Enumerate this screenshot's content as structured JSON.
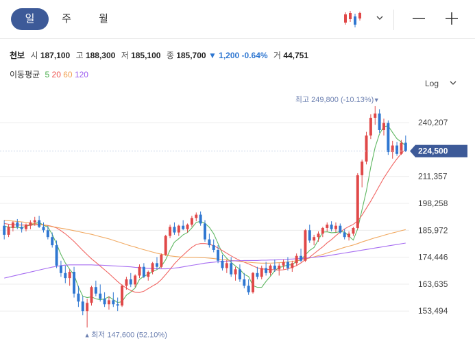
{
  "tabs": [
    {
      "label": "일",
      "active": true
    },
    {
      "label": "주",
      "active": false
    },
    {
      "label": "월",
      "active": false
    }
  ],
  "toolbar": {
    "chart_type_icon": "candlestick-icon",
    "dropdown_icon": "chevron-down-icon",
    "zoom_out_icon": "minus-icon",
    "zoom_in_icon": "plus-icon"
  },
  "quote": {
    "name": "천보",
    "open_label": "시",
    "open": "187,100",
    "high_label": "고",
    "high": "188,300",
    "low_label": "저",
    "low": "185,100",
    "close_label": "종",
    "close": "185,700",
    "change_arrow": "▼",
    "change": "1,200",
    "change_pct": "-0.64%",
    "volume_label": "거",
    "volume": "44,751"
  },
  "ma": {
    "label": "이동평균",
    "items": [
      {
        "period": "5",
        "color": "#4caf50"
      },
      {
        "period": "20",
        "color": "#ef5350"
      },
      {
        "period": "60",
        "color": "#f0a050"
      },
      {
        "period": "120",
        "color": "#9c5cf0"
      }
    ]
  },
  "scale": {
    "label": "Log",
    "icon": "chevron-down-icon"
  },
  "colors": {
    "up": "#e04848",
    "down": "#2f77d1",
    "accent": "#3d5a98"
  },
  "chart_data": {
    "type": "candlestick",
    "scale": "log",
    "yticks": [
      "240,207",
      "211,357",
      "198,258",
      "185,972",
      "174,446",
      "163,635",
      "153,494"
    ],
    "ytick_values": [
      240207,
      211357,
      198258,
      185972,
      174446,
      163635,
      153494
    ],
    "ylim": [
      146000,
      256000
    ],
    "current_price": 224500,
    "current_price_label": "224,500",
    "high_annotation": "최고 249,800 (-10.13%)",
    "high_marker": "▼",
    "high_value": 249800,
    "low_annotation": "최저 147,600 (52.10%)",
    "low_marker": "▲",
    "low_value": 147600,
    "candles": [
      [
        188000,
        190500,
        182000,
        184000
      ],
      [
        184000,
        188500,
        183000,
        187500
      ],
      [
        187000,
        190000,
        185500,
        189500
      ],
      [
        189500,
        191000,
        186500,
        187500
      ],
      [
        187500,
        189500,
        185000,
        186500
      ],
      [
        186500,
        189000,
        185500,
        188500
      ],
      [
        188000,
        190500,
        186500,
        189500
      ],
      [
        189500,
        192000,
        188000,
        190500
      ],
      [
        190500,
        192500,
        187000,
        187500
      ],
      [
        187500,
        189500,
        185000,
        186000
      ],
      [
        186000,
        188000,
        182000,
        183000
      ],
      [
        183000,
        185000,
        178500,
        179500
      ],
      [
        179500,
        181500,
        170000,
        171000
      ],
      [
        171000,
        173000,
        166500,
        168000
      ],
      [
        168000,
        171000,
        164000,
        166000
      ],
      [
        166000,
        169500,
        163000,
        168500
      ],
      [
        168500,
        170500,
        158500,
        160000
      ],
      [
        160000,
        163000,
        155000,
        157000
      ],
      [
        157000,
        159000,
        152000,
        153500
      ],
      [
        153500,
        158000,
        147600,
        156500
      ],
      [
        156500,
        163000,
        155500,
        162500
      ],
      [
        162500,
        165000,
        159000,
        160000
      ],
      [
        160000,
        163500,
        157000,
        158000
      ],
      [
        158000,
        160500,
        155000,
        156000
      ],
      [
        156000,
        159000,
        154000,
        157500
      ],
      [
        157500,
        160500,
        155000,
        156000
      ],
      [
        156000,
        158500,
        153500,
        155500
      ],
      [
        155500,
        163500,
        155000,
        163000
      ],
      [
        163000,
        166500,
        161500,
        165500
      ],
      [
        165500,
        168000,
        162500,
        163500
      ],
      [
        163500,
        167500,
        162500,
        167000
      ],
      [
        167000,
        171500,
        166000,
        170500
      ],
      [
        170500,
        172000,
        166000,
        166500
      ],
      [
        166500,
        169000,
        165000,
        168500
      ],
      [
        168500,
        172500,
        167500,
        172000
      ],
      [
        172000,
        174500,
        169500,
        170500
      ],
      [
        170500,
        176000,
        170000,
        175500
      ],
      [
        175500,
        184000,
        175000,
        183500
      ],
      [
        183500,
        188500,
        182500,
        187500
      ],
      [
        187500,
        189500,
        184000,
        185000
      ],
      [
        185000,
        188500,
        183500,
        188000
      ],
      [
        188000,
        190500,
        186000,
        186500
      ],
      [
        186500,
        189000,
        185000,
        188500
      ],
      [
        188500,
        192500,
        187500,
        191500
      ],
      [
        191500,
        194000,
        190000,
        193000
      ],
      [
        193000,
        194500,
        188000,
        189000
      ],
      [
        189000,
        190500,
        181000,
        182000
      ],
      [
        182000,
        184500,
        178500,
        179500
      ],
      [
        179500,
        182000,
        176500,
        177500
      ],
      [
        177500,
        179500,
        172000,
        173000
      ],
      [
        173000,
        175500,
        169000,
        170000
      ],
      [
        170000,
        173500,
        168000,
        172000
      ],
      [
        172000,
        174500,
        166500,
        167500
      ],
      [
        167500,
        170500,
        165000,
        169500
      ],
      [
        169500,
        171500,
        164500,
        165500
      ],
      [
        165500,
        168000,
        162000,
        163000
      ],
      [
        163000,
        165500,
        159500,
        160500
      ],
      [
        160500,
        168500,
        160000,
        168000
      ],
      [
        168000,
        170500,
        165500,
        166500
      ],
      [
        166500,
        171000,
        165500,
        170000
      ],
      [
        170000,
        172500,
        167000,
        168000
      ],
      [
        168000,
        171500,
        167000,
        171000
      ],
      [
        171000,
        173500,
        168500,
        169500
      ],
      [
        169500,
        172000,
        167000,
        171000
      ],
      [
        171000,
        173500,
        169500,
        172500
      ],
      [
        172500,
        174500,
        169000,
        170000
      ],
      [
        170000,
        173000,
        168500,
        172000
      ],
      [
        172000,
        176000,
        171000,
        175000
      ],
      [
        175000,
        178000,
        172500,
        173000
      ],
      [
        173000,
        186500,
        172500,
        186000
      ],
      [
        186000,
        188500,
        180500,
        181500
      ],
      [
        181500,
        184000,
        179500,
        183000
      ],
      [
        183000,
        185500,
        181000,
        184500
      ],
      [
        184500,
        187500,
        183000,
        187000
      ],
      [
        187000,
        189500,
        185500,
        188500
      ],
      [
        188500,
        190000,
        185500,
        186500
      ],
      [
        186500,
        189500,
        185000,
        188000
      ],
      [
        188000,
        189000,
        184500,
        185000
      ],
      [
        185000,
        186500,
        182000,
        183000
      ],
      [
        183000,
        185500,
        181500,
        184500
      ],
      [
        184500,
        187500,
        183500,
        187000
      ],
      [
        187000,
        213000,
        186500,
        212000
      ],
      [
        212000,
        220000,
        206000,
        219000
      ],
      [
        219000,
        235000,
        217500,
        233000
      ],
      [
        233000,
        245000,
        231000,
        243000
      ],
      [
        243000,
        249800,
        239000,
        245500
      ],
      [
        245500,
        248000,
        234500,
        236000
      ],
      [
        236000,
        242500,
        233000,
        240000
      ],
      [
        240000,
        241500,
        222500,
        224000
      ],
      [
        224000,
        230000,
        220500,
        227500
      ],
      [
        227500,
        229500,
        222000,
        223000
      ],
      [
        223000,
        230500,
        222500,
        229000
      ],
      [
        229000,
        233000,
        224000,
        224500
      ]
    ],
    "ma": [
      {
        "period": 5,
        "values": [
          187800,
          187400,
          187200,
          187300,
          187000,
          187800,
          188300,
          189000,
          189500,
          188200,
          187400,
          184200,
          180000,
          175600,
          172100,
          169500,
          167300,
          162500,
          159000,
          158500,
          158800,
          158000,
          157700,
          158000,
          158800,
          157700,
          156600,
          157000,
          159400,
          160600,
          162200,
          165500,
          166700,
          167500,
          168600,
          169400,
          170700,
          173400,
          177400,
          180800,
          182300,
          184000,
          185000,
          187000,
          189500,
          190000,
          189100,
          187300,
          184500,
          180200,
          176000,
          174000,
          172300,
          170800,
          169500,
          167500,
          166600,
          163100,
          162400,
          162400,
          164700,
          166700,
          168900,
          170300,
          170600,
          171300,
          171300,
          172900,
          173300,
          175400,
          177300,
          178500,
          181800,
          185200,
          185300,
          184900,
          185000,
          185400,
          185200,
          183400,
          181700,
          186600,
          195300,
          204200,
          216100,
          226500,
          233800,
          238000,
          238300,
          234700,
          231200,
          229400,
          227400
        ]
      },
      {
        "period": 20,
        "values": [
          189000,
          188700,
          188500,
          188400,
          188300,
          188300,
          188300,
          188400,
          188500,
          188400,
          188100,
          187700,
          187000,
          185800,
          184400,
          182800,
          181100,
          179200,
          177300,
          175500,
          173800,
          172300,
          170800,
          169300,
          167800,
          166200,
          164600,
          163200,
          162100,
          161200,
          160500,
          160400,
          160900,
          161900,
          162900,
          163900,
          165400,
          167400,
          169500,
          171700,
          173600,
          175300,
          177000,
          178600,
          179800,
          180200,
          180200,
          179900,
          179300,
          178300,
          177200,
          176100,
          175000,
          174000,
          173100,
          172400,
          171700,
          170900,
          170100,
          169700,
          169500,
          169400,
          169300,
          169200,
          169300,
          169700,
          170300,
          171000,
          172100,
          173400,
          174500,
          175900,
          177400,
          178800,
          180500,
          181900,
          183600,
          185200,
          186600,
          187700,
          188600,
          190200,
          192800,
          196000,
          199300,
          203000,
          206800,
          210600,
          214000,
          217300,
          220400,
          223200,
          225600
        ]
      },
      {
        "period": 60,
        "values": [
          190500,
          190300,
          190100,
          189900,
          189700,
          189500,
          189200,
          188900,
          188600,
          188300,
          188000,
          187600,
          187300,
          186900,
          186600,
          186200,
          185800,
          185400,
          185000,
          184600,
          184200,
          183700,
          183200,
          182700,
          182200,
          181600,
          181000,
          180400,
          179800,
          179200,
          178700,
          178100,
          177600,
          177100,
          176600,
          176100,
          175700,
          175300,
          175000,
          174800,
          174600,
          174500,
          174400,
          174400,
          174400,
          174300,
          174200,
          174100,
          173900,
          173700,
          173500,
          173300,
          173100,
          172900,
          172700,
          172500,
          172400,
          172200,
          172100,
          172000,
          172000,
          172000,
          172100,
          172200,
          172300,
          172500,
          172700,
          173000,
          173300,
          173700,
          174100,
          174600,
          175100,
          175600,
          176200,
          176800,
          177400,
          178000,
          178600,
          179100,
          179600,
          180200,
          180900,
          181500,
          182100,
          182700,
          183200,
          183800,
          184300,
          184800,
          185300,
          185800,
          186300
        ]
      },
      {
        "period": 120,
        "values": [
          166000,
          166400,
          166800,
          167200,
          167600,
          168000,
          168400,
          168800,
          169200,
          169600,
          170000,
          170400,
          170700,
          171000,
          171200,
          171300,
          171300,
          171300,
          171300,
          171300,
          171300,
          171200,
          171200,
          171100,
          171000,
          170900,
          170800,
          170700,
          170600,
          170500,
          170300,
          170200,
          170000,
          169900,
          169800,
          169700,
          169700,
          169700,
          169800,
          170000,
          170200,
          170500,
          170800,
          171100,
          171400,
          171700,
          172000,
          172200,
          172400,
          172600,
          172700,
          172800,
          172900,
          173000,
          173000,
          173100,
          173100,
          173100,
          173100,
          173200,
          173200,
          173300,
          173300,
          173400,
          173500,
          173600,
          173700,
          173800,
          173900,
          174000,
          174200,
          174400,
          174600,
          174800,
          175000,
          175300,
          175600,
          175900,
          176200,
          176500,
          176800,
          177100,
          177400,
          177700,
          178000,
          178300,
          178600,
          178900,
          179200,
          179500,
          179800,
          180100,
          180400
        ]
      }
    ]
  }
}
